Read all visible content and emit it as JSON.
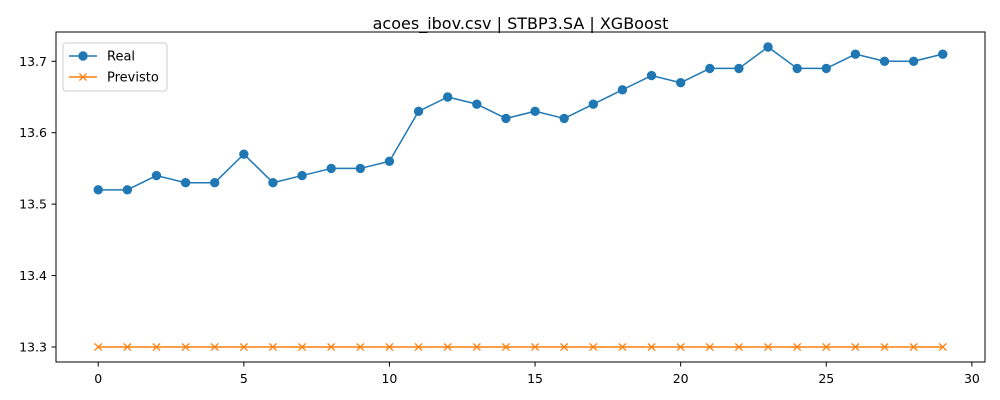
{
  "chart_data": {
    "type": "line",
    "title": "acoes_ibov.csv | STBP3.SA | XGBoost",
    "xlabel": "",
    "ylabel": "",
    "xlim": [
      -1.45,
      30.45
    ],
    "ylim": [
      13.279,
      13.741
    ],
    "xticks": [
      0,
      5,
      10,
      15,
      20,
      25,
      30
    ],
    "yticks": [
      13.3,
      13.4,
      13.5,
      13.6,
      13.7
    ],
    "ytick_labels": [
      "13.3",
      "13.4",
      "13.5",
      "13.6",
      "13.7"
    ],
    "grid": false,
    "legend_position": "top-left",
    "x": [
      0,
      1,
      2,
      3,
      4,
      5,
      6,
      7,
      8,
      9,
      10,
      11,
      12,
      13,
      14,
      15,
      16,
      17,
      18,
      19,
      20,
      21,
      22,
      23,
      24,
      25,
      26,
      27,
      28,
      29
    ],
    "series": [
      {
        "name": "Real",
        "color": "#1f77b4",
        "marker": "circle",
        "values": [
          13.52,
          13.52,
          13.54,
          13.53,
          13.53,
          13.57,
          13.53,
          13.54,
          13.55,
          13.55,
          13.56,
          13.63,
          13.65,
          13.64,
          13.62,
          13.63,
          13.62,
          13.64,
          13.66,
          13.68,
          13.67,
          13.69,
          13.69,
          13.72,
          13.69,
          13.69,
          13.71,
          13.7,
          13.7,
          13.71
        ]
      },
      {
        "name": "Previsto",
        "color": "#ff7f0e",
        "marker": "x",
        "values": [
          13.3,
          13.3,
          13.3,
          13.3,
          13.3,
          13.3,
          13.3,
          13.3,
          13.3,
          13.3,
          13.3,
          13.3,
          13.3,
          13.3,
          13.3,
          13.3,
          13.3,
          13.3,
          13.3,
          13.3,
          13.3,
          13.3,
          13.3,
          13.3,
          13.3,
          13.3,
          13.3,
          13.3,
          13.3,
          13.3
        ]
      }
    ]
  }
}
